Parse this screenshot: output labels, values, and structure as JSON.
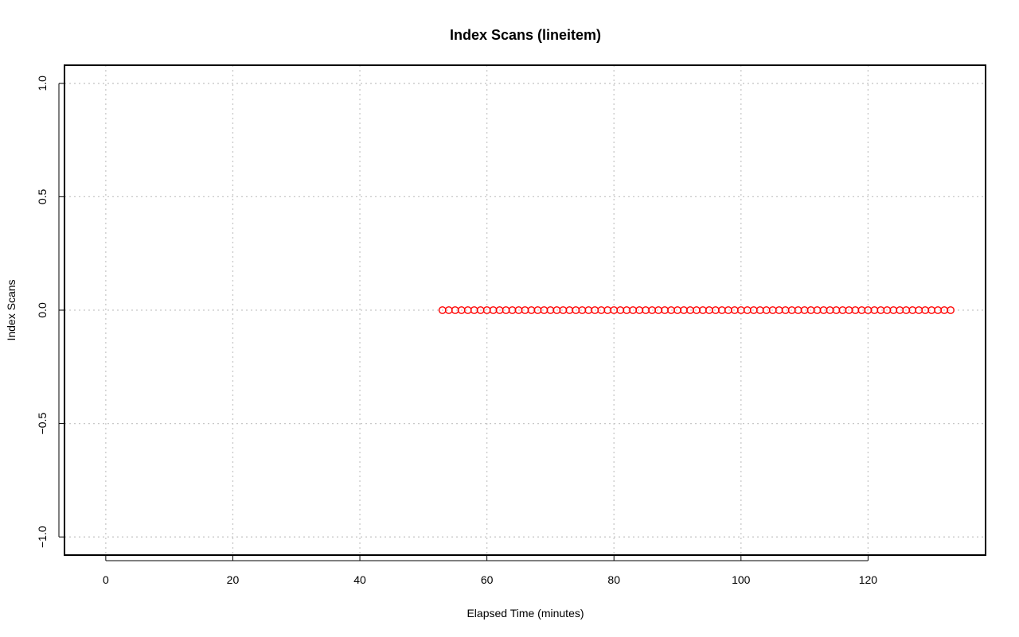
{
  "chart_data": {
    "type": "scatter",
    "title": "Index Scans (lineitem)",
    "xlabel": "Elapsed Time (minutes)",
    "ylabel": "Index Scans",
    "xlim": [
      -6.5,
      138.5
    ],
    "ylim": [
      -1.08,
      1.08
    ],
    "x_ticks": [
      0,
      20,
      40,
      60,
      80,
      100,
      120
    ],
    "y_ticks": [
      -1.0,
      -0.5,
      0.0,
      0.5,
      1.0
    ],
    "x_tick_labels": [
      "0",
      "20",
      "40",
      "60",
      "80",
      "100",
      "120"
    ],
    "y_tick_labels": [
      "−1.0",
      "−0.5",
      "0.0",
      "0.5",
      "1.0"
    ],
    "grid": true,
    "marker_color": "#ff0000",
    "series": [
      {
        "marker": "open-circle",
        "x": [
          53,
          54,
          55,
          56,
          57,
          58,
          59,
          60,
          61,
          62,
          63,
          64,
          65,
          66,
          67,
          68,
          69,
          70,
          71,
          72,
          73,
          74,
          75,
          76,
          77,
          78,
          79,
          80,
          81,
          82,
          83,
          84,
          85,
          86,
          87,
          88,
          89,
          90,
          91,
          92,
          93,
          94,
          95,
          96,
          97,
          98,
          99,
          100,
          101,
          102,
          103,
          104,
          105,
          106,
          107,
          108,
          109,
          110,
          111,
          112,
          113,
          114,
          115,
          116,
          117,
          118,
          119,
          120,
          121,
          122,
          123,
          124,
          125,
          126,
          127,
          128,
          129,
          130,
          131,
          132,
          133
        ],
        "y": [
          0,
          0,
          0,
          0,
          0,
          0,
          0,
          0,
          0,
          0,
          0,
          0,
          0,
          0,
          0,
          0,
          0,
          0,
          0,
          0,
          0,
          0,
          0,
          0,
          0,
          0,
          0,
          0,
          0,
          0,
          0,
          0,
          0,
          0,
          0,
          0,
          0,
          0,
          0,
          0,
          0,
          0,
          0,
          0,
          0,
          0,
          0,
          0,
          0,
          0,
          0,
          0,
          0,
          0,
          0,
          0,
          0,
          0,
          0,
          0,
          0,
          0,
          0,
          0,
          0,
          0,
          0,
          0,
          0,
          0,
          0,
          0,
          0,
          0,
          0,
          0,
          0,
          0,
          0,
          0,
          0
        ]
      }
    ]
  }
}
